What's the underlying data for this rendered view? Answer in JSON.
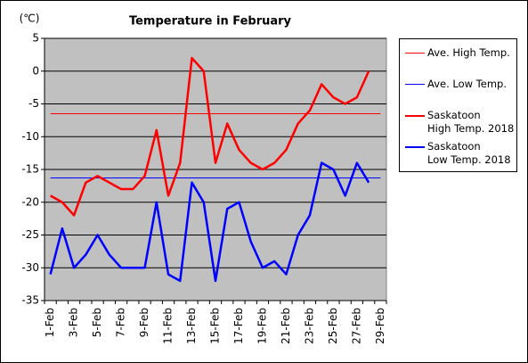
{
  "chart_data": {
    "type": "line",
    "title": "Temperature in February",
    "y_label": "(℃)",
    "categories": [
      "1-Feb",
      null,
      "3-Feb",
      null,
      "5-Feb",
      null,
      "7-Feb",
      null,
      "9-Feb",
      null,
      "11-Feb",
      null,
      "13-Feb",
      null,
      "15-Feb",
      null,
      "17-Feb",
      null,
      "19-Feb",
      null,
      "21-Feb",
      null,
      "23-Feb",
      null,
      "25-Feb",
      null,
      "27-Feb",
      null,
      "29-Feb"
    ],
    "ylim": [
      -35,
      5
    ],
    "yticks": [
      5,
      0,
      -5,
      -10,
      -15,
      -20,
      -25,
      -30,
      -35
    ],
    "grid": true,
    "legend": "right",
    "series": [
      {
        "name": "Ave. High Temp.",
        "color": "#ff0000",
        "width": 1,
        "values": [
          -6.5,
          -6.5,
          -6.5,
          -6.5,
          -6.5,
          -6.5,
          -6.5,
          -6.5,
          -6.5,
          -6.5,
          -6.5,
          -6.5,
          -6.5,
          -6.5,
          -6.5,
          -6.5,
          -6.5,
          -6.5,
          -6.5,
          -6.5,
          -6.5,
          -6.5,
          -6.5,
          -6.5,
          -6.5,
          -6.5,
          -6.5,
          -6.5,
          -6.5
        ]
      },
      {
        "name": "Ave. Low Temp.",
        "color": "#0000ff",
        "width": 1,
        "values": [
          -16.3,
          -16.3,
          -16.3,
          -16.3,
          -16.3,
          -16.3,
          -16.3,
          -16.3,
          -16.3,
          -16.3,
          -16.3,
          -16.3,
          -16.3,
          -16.3,
          -16.3,
          -16.3,
          -16.3,
          -16.3,
          -16.3,
          -16.3,
          -16.3,
          -16.3,
          -16.3,
          -16.3,
          -16.3,
          -16.3,
          -16.3,
          -16.3,
          -16.3
        ]
      },
      {
        "name": "Saskatoon\nHigh Temp. 2018",
        "color": "#ff0000",
        "width": 2.5,
        "values": [
          -19,
          -20,
          -22,
          -17,
          -16,
          -17,
          -18,
          -18,
          -16,
          -9,
          -19,
          -14,
          2,
          0,
          -14,
          -8,
          -12,
          -14,
          -15,
          -14,
          -12,
          -8,
          -6,
          -2,
          -4,
          -5,
          -4,
          0,
          null
        ]
      },
      {
        "name": "Saskatoon\nLow Temp. 2018",
        "color": "#0000ff",
        "width": 2.5,
        "values": [
          -31,
          -24,
          -30,
          -28,
          -25,
          -28,
          -30,
          -30,
          -30,
          -20,
          -31,
          -32,
          -17,
          -20,
          -32,
          -21,
          -20,
          -26,
          -30,
          -29,
          -31,
          -25,
          -22,
          -14,
          -15,
          -19,
          -14,
          -17,
          null
        ]
      }
    ]
  }
}
